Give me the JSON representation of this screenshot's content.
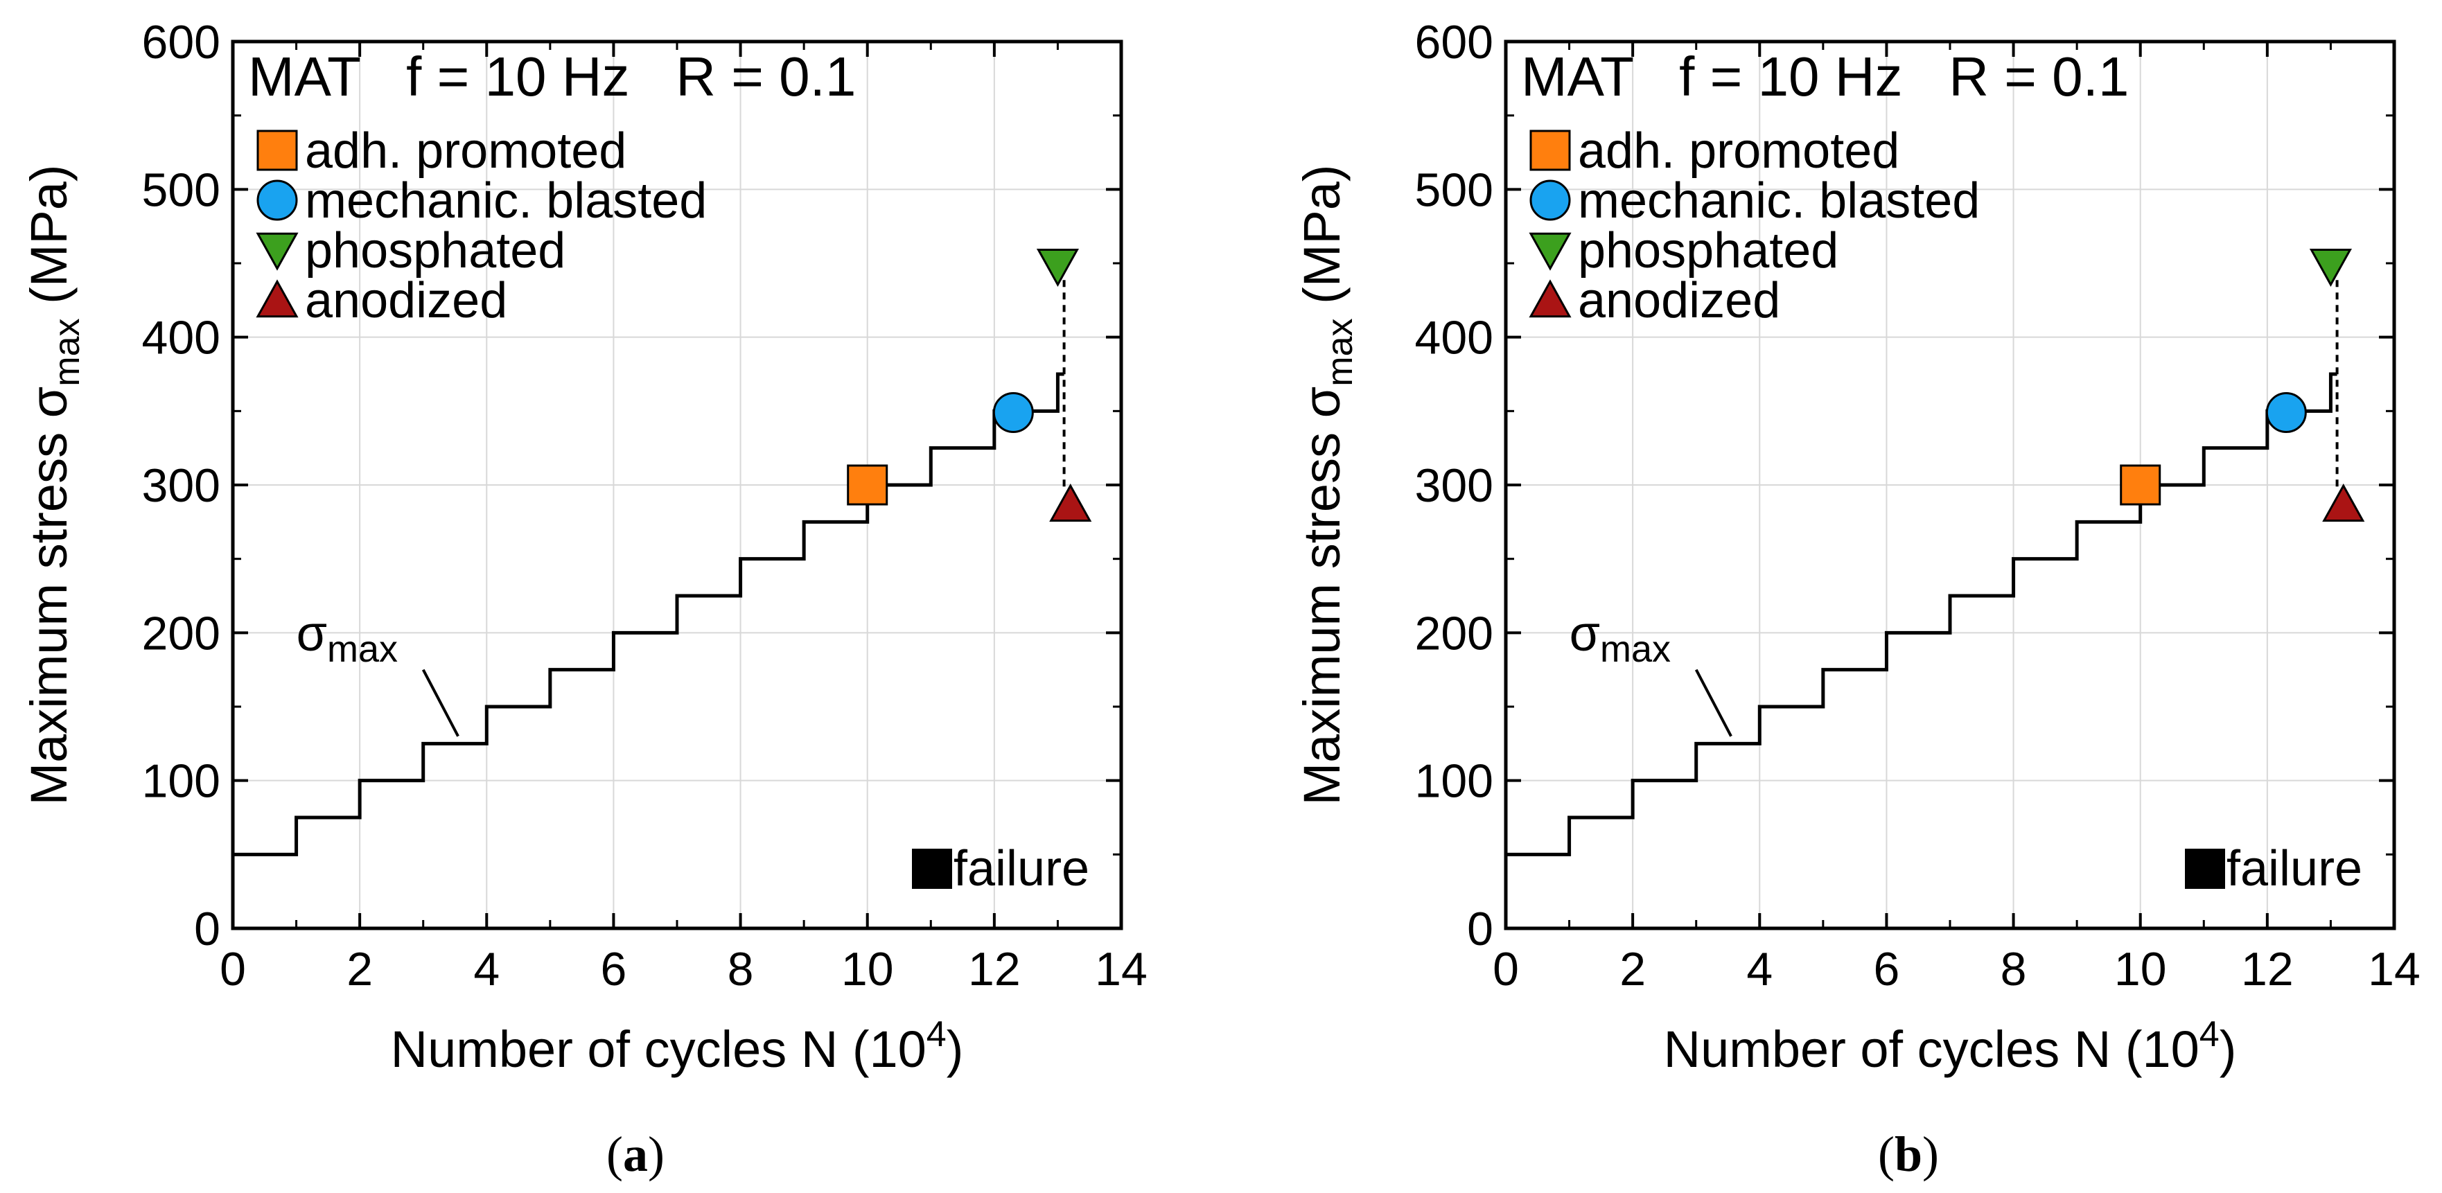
{
  "panels": [
    {
      "caption_letter": "a",
      "chart_data": {
        "type": "line",
        "legend_title": "MAT   f = 10 Hz   R = 0.1",
        "xlabel_prefix": "Number of cycles N (10",
        "xlabel_sup": "4",
        "xlabel_suffix": ")",
        "ylabel_prefix": "Maximum stress σ",
        "ylabel_sub": "max",
        "ylabel_suffix": " (MPa)",
        "xlim": [
          0,
          14
        ],
        "ylim": [
          0,
          600
        ],
        "xticks": [
          "0",
          "2",
          "4",
          "6",
          "8",
          "10",
          "12",
          "14"
        ],
        "yticks": [
          "0",
          "100",
          "200",
          "300",
          "400",
          "500",
          "600"
        ],
        "grid": true,
        "step_label_main": "σ",
        "step_label_sub": "max",
        "step_x": [
          0,
          1,
          1,
          2,
          2,
          3,
          3,
          4,
          4,
          5,
          5,
          6,
          6,
          7,
          7,
          8,
          8,
          9,
          9,
          10,
          10,
          11,
          11,
          12,
          12,
          13,
          13,
          13.1
        ],
        "step_y": [
          50,
          50,
          75,
          75,
          100,
          100,
          125,
          125,
          150,
          150,
          175,
          175,
          200,
          200,
          225,
          225,
          250,
          250,
          275,
          275,
          300,
          300,
          325,
          325,
          350,
          350,
          375,
          375
        ],
        "series": [
          {
            "name": "adh. promoted",
            "marker": "square",
            "color": "#ff7f0e",
            "x": 10.0,
            "y": 300
          },
          {
            "name": "mechanic. blasted",
            "marker": "circle",
            "color": "#19a3f0",
            "x": 12.3,
            "y": 349
          },
          {
            "name": "phosphated",
            "marker": "triangle-down",
            "color": "#3ca01e",
            "x": 13.0,
            "y": 448
          },
          {
            "name": "anodized",
            "marker": "triangle-up",
            "color": "#aa1414",
            "x": 13.2,
            "y": 287
          }
        ],
        "failure_label": "failure"
      }
    },
    {
      "caption_letter": "b",
      "chart_data": {
        "type": "line",
        "legend_title": "MAT   f = 10 Hz   R = 0.1",
        "xlabel_prefix": "Number of cycles N (10",
        "xlabel_sup": "4",
        "xlabel_suffix": ")",
        "ylabel_prefix": "Maximum stress σ",
        "ylabel_sub": "max",
        "ylabel_suffix": " (MPa)",
        "xlim": [
          0,
          14
        ],
        "ylim": [
          0,
          600
        ],
        "xticks": [
          "0",
          "2",
          "4",
          "6",
          "8",
          "10",
          "12",
          "14"
        ],
        "yticks": [
          "0",
          "100",
          "200",
          "300",
          "400",
          "500",
          "600"
        ],
        "grid": true,
        "step_label_main": "σ",
        "step_label_sub": "max",
        "step_x": [
          0,
          1,
          1,
          2,
          2,
          3,
          3,
          4,
          4,
          5,
          5,
          6,
          6,
          7,
          7,
          8,
          8,
          9,
          9,
          10,
          10,
          11,
          11,
          12,
          12,
          13,
          13,
          13.1
        ],
        "step_y": [
          50,
          50,
          75,
          75,
          100,
          100,
          125,
          125,
          150,
          150,
          175,
          175,
          200,
          200,
          225,
          225,
          250,
          250,
          275,
          275,
          300,
          300,
          325,
          325,
          350,
          350,
          375,
          375
        ],
        "series": [
          {
            "name": "adh. promoted",
            "marker": "square",
            "color": "#ff7f0e",
            "x": 10.0,
            "y": 300
          },
          {
            "name": "mechanic. blasted",
            "marker": "circle",
            "color": "#19a3f0",
            "x": 12.3,
            "y": 349
          },
          {
            "name": "phosphated",
            "marker": "triangle-down",
            "color": "#3ca01e",
            "x": 13.0,
            "y": 448
          },
          {
            "name": "anodized",
            "marker": "triangle-up",
            "color": "#aa1414",
            "x": 13.2,
            "y": 287
          }
        ],
        "failure_label": "failure"
      }
    }
  ]
}
